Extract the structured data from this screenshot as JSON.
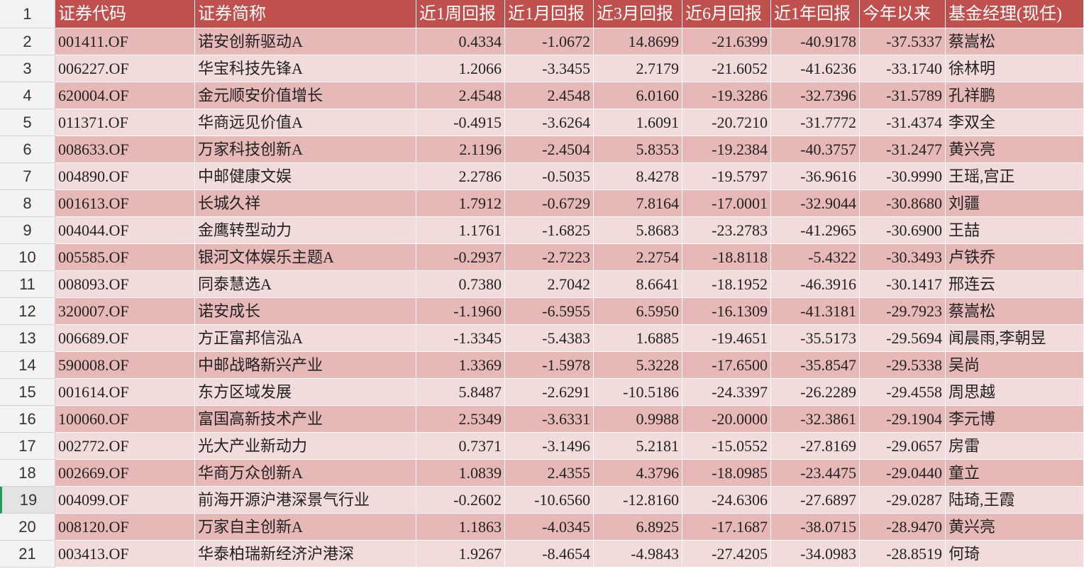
{
  "table": {
    "row_numbers": [
      1,
      2,
      3,
      4,
      5,
      6,
      7,
      8,
      9,
      10,
      11,
      12,
      13,
      14,
      15,
      16,
      17,
      18,
      19,
      20,
      21
    ],
    "header": [
      "证券代码",
      "证券简称",
      "近1周回报",
      "近1月回报",
      "近3月回报",
      "近6月回报",
      "近1年回报",
      "今年以来",
      "基金经理(现任)"
    ],
    "rows": [
      [
        "001411.OF",
        "诺安创新驱动A",
        "0.4334",
        "-1.0672",
        "14.8699",
        "-21.6399",
        "-40.9178",
        "-37.5337",
        "蔡嵩松"
      ],
      [
        "006227.OF",
        "华宝科技先锋A",
        "1.2066",
        "-3.3455",
        "2.7179",
        "-21.6052",
        "-41.6236",
        "-33.1740",
        "徐林明"
      ],
      [
        "620004.OF",
        "金元顺安价值增长",
        "2.4548",
        "2.4548",
        "6.0160",
        "-19.3286",
        "-32.7396",
        "-31.5789",
        "孔祥鹏"
      ],
      [
        "011371.OF",
        "华商远见价值A",
        "-0.4915",
        "-3.6264",
        "1.6091",
        "-20.7210",
        "-31.7772",
        "-31.4374",
        "李双全"
      ],
      [
        "008633.OF",
        "万家科技创新A",
        "2.1196",
        "-2.4504",
        "5.8353",
        "-19.2384",
        "-40.3757",
        "-31.2477",
        "黄兴亮"
      ],
      [
        "004890.OF",
        "中邮健康文娱",
        "2.2786",
        "-0.5035",
        "8.4278",
        "-19.5797",
        "-36.9616",
        "-30.9990",
        "王瑶,宫正"
      ],
      [
        "001613.OF",
        "长城久祥",
        "1.7912",
        "-0.6729",
        "7.8164",
        "-17.0001",
        "-32.9044",
        "-30.8680",
        "刘疆"
      ],
      [
        "004044.OF",
        "金鹰转型动力",
        "1.1761",
        "-1.6825",
        "5.8683",
        "-23.2783",
        "-41.2965",
        "-30.6900",
        "王喆"
      ],
      [
        "005585.OF",
        "银河文体娱乐主题A",
        "-0.2937",
        "-2.7223",
        "2.2754",
        "-18.8118",
        "-5.4322",
        "-30.3493",
        "卢铁乔"
      ],
      [
        "008093.OF",
        "同泰慧选A",
        "0.7380",
        "2.7042",
        "8.6641",
        "-18.1952",
        "-46.3916",
        "-30.1417",
        "邢连云"
      ],
      [
        "320007.OF",
        "诺安成长",
        "-1.1960",
        "-6.5955",
        "6.5950",
        "-16.1309",
        "-41.3181",
        "-29.7923",
        "蔡嵩松"
      ],
      [
        "006689.OF",
        "方正富邦信泓A",
        "-1.3345",
        "-5.4383",
        "1.6885",
        "-19.4651",
        "-35.5173",
        "-29.5694",
        "闻晨雨,李朝昱"
      ],
      [
        "590008.OF",
        "中邮战略新兴产业",
        "1.3369",
        "-1.5978",
        "5.3228",
        "-17.6500",
        "-35.8547",
        "-29.5338",
        "吴尚"
      ],
      [
        "001614.OF",
        "东方区域发展",
        "5.8487",
        "-2.6291",
        "-10.5186",
        "-24.3397",
        "-26.2289",
        "-29.4558",
        "周思越"
      ],
      [
        "100060.OF",
        "富国高新技术产业",
        "2.5349",
        "-3.6331",
        "0.9988",
        "-20.0000",
        "-32.3861",
        "-29.1904",
        "李元博"
      ],
      [
        "002772.OF",
        "光大产业新动力",
        "0.7371",
        "-3.1496",
        "5.2181",
        "-15.0552",
        "-27.8169",
        "-29.0657",
        "房雷"
      ],
      [
        "002669.OF",
        "华商万众创新A",
        "1.0839",
        "2.4355",
        "4.3796",
        "-18.0985",
        "-23.4475",
        "-29.0440",
        "童立"
      ],
      [
        "004099.OF",
        "前海开源沪港深景气行业",
        "-0.2602",
        "-10.6560",
        "-12.8160",
        "-24.6306",
        "-27.6897",
        "-29.0287",
        "陆琦,王霞"
      ],
      [
        "008120.OF",
        "万家自主创新A",
        "1.1863",
        "-4.0345",
        "6.8925",
        "-17.1687",
        "-38.0715",
        "-28.9470",
        "黄兴亮"
      ],
      [
        "003413.OF",
        "华泰柏瑞新经济沪港深",
        "1.9267",
        "-8.4654",
        "-4.9843",
        "-27.4205",
        "-34.0983",
        "-28.8519",
        "何琦"
      ]
    ]
  }
}
